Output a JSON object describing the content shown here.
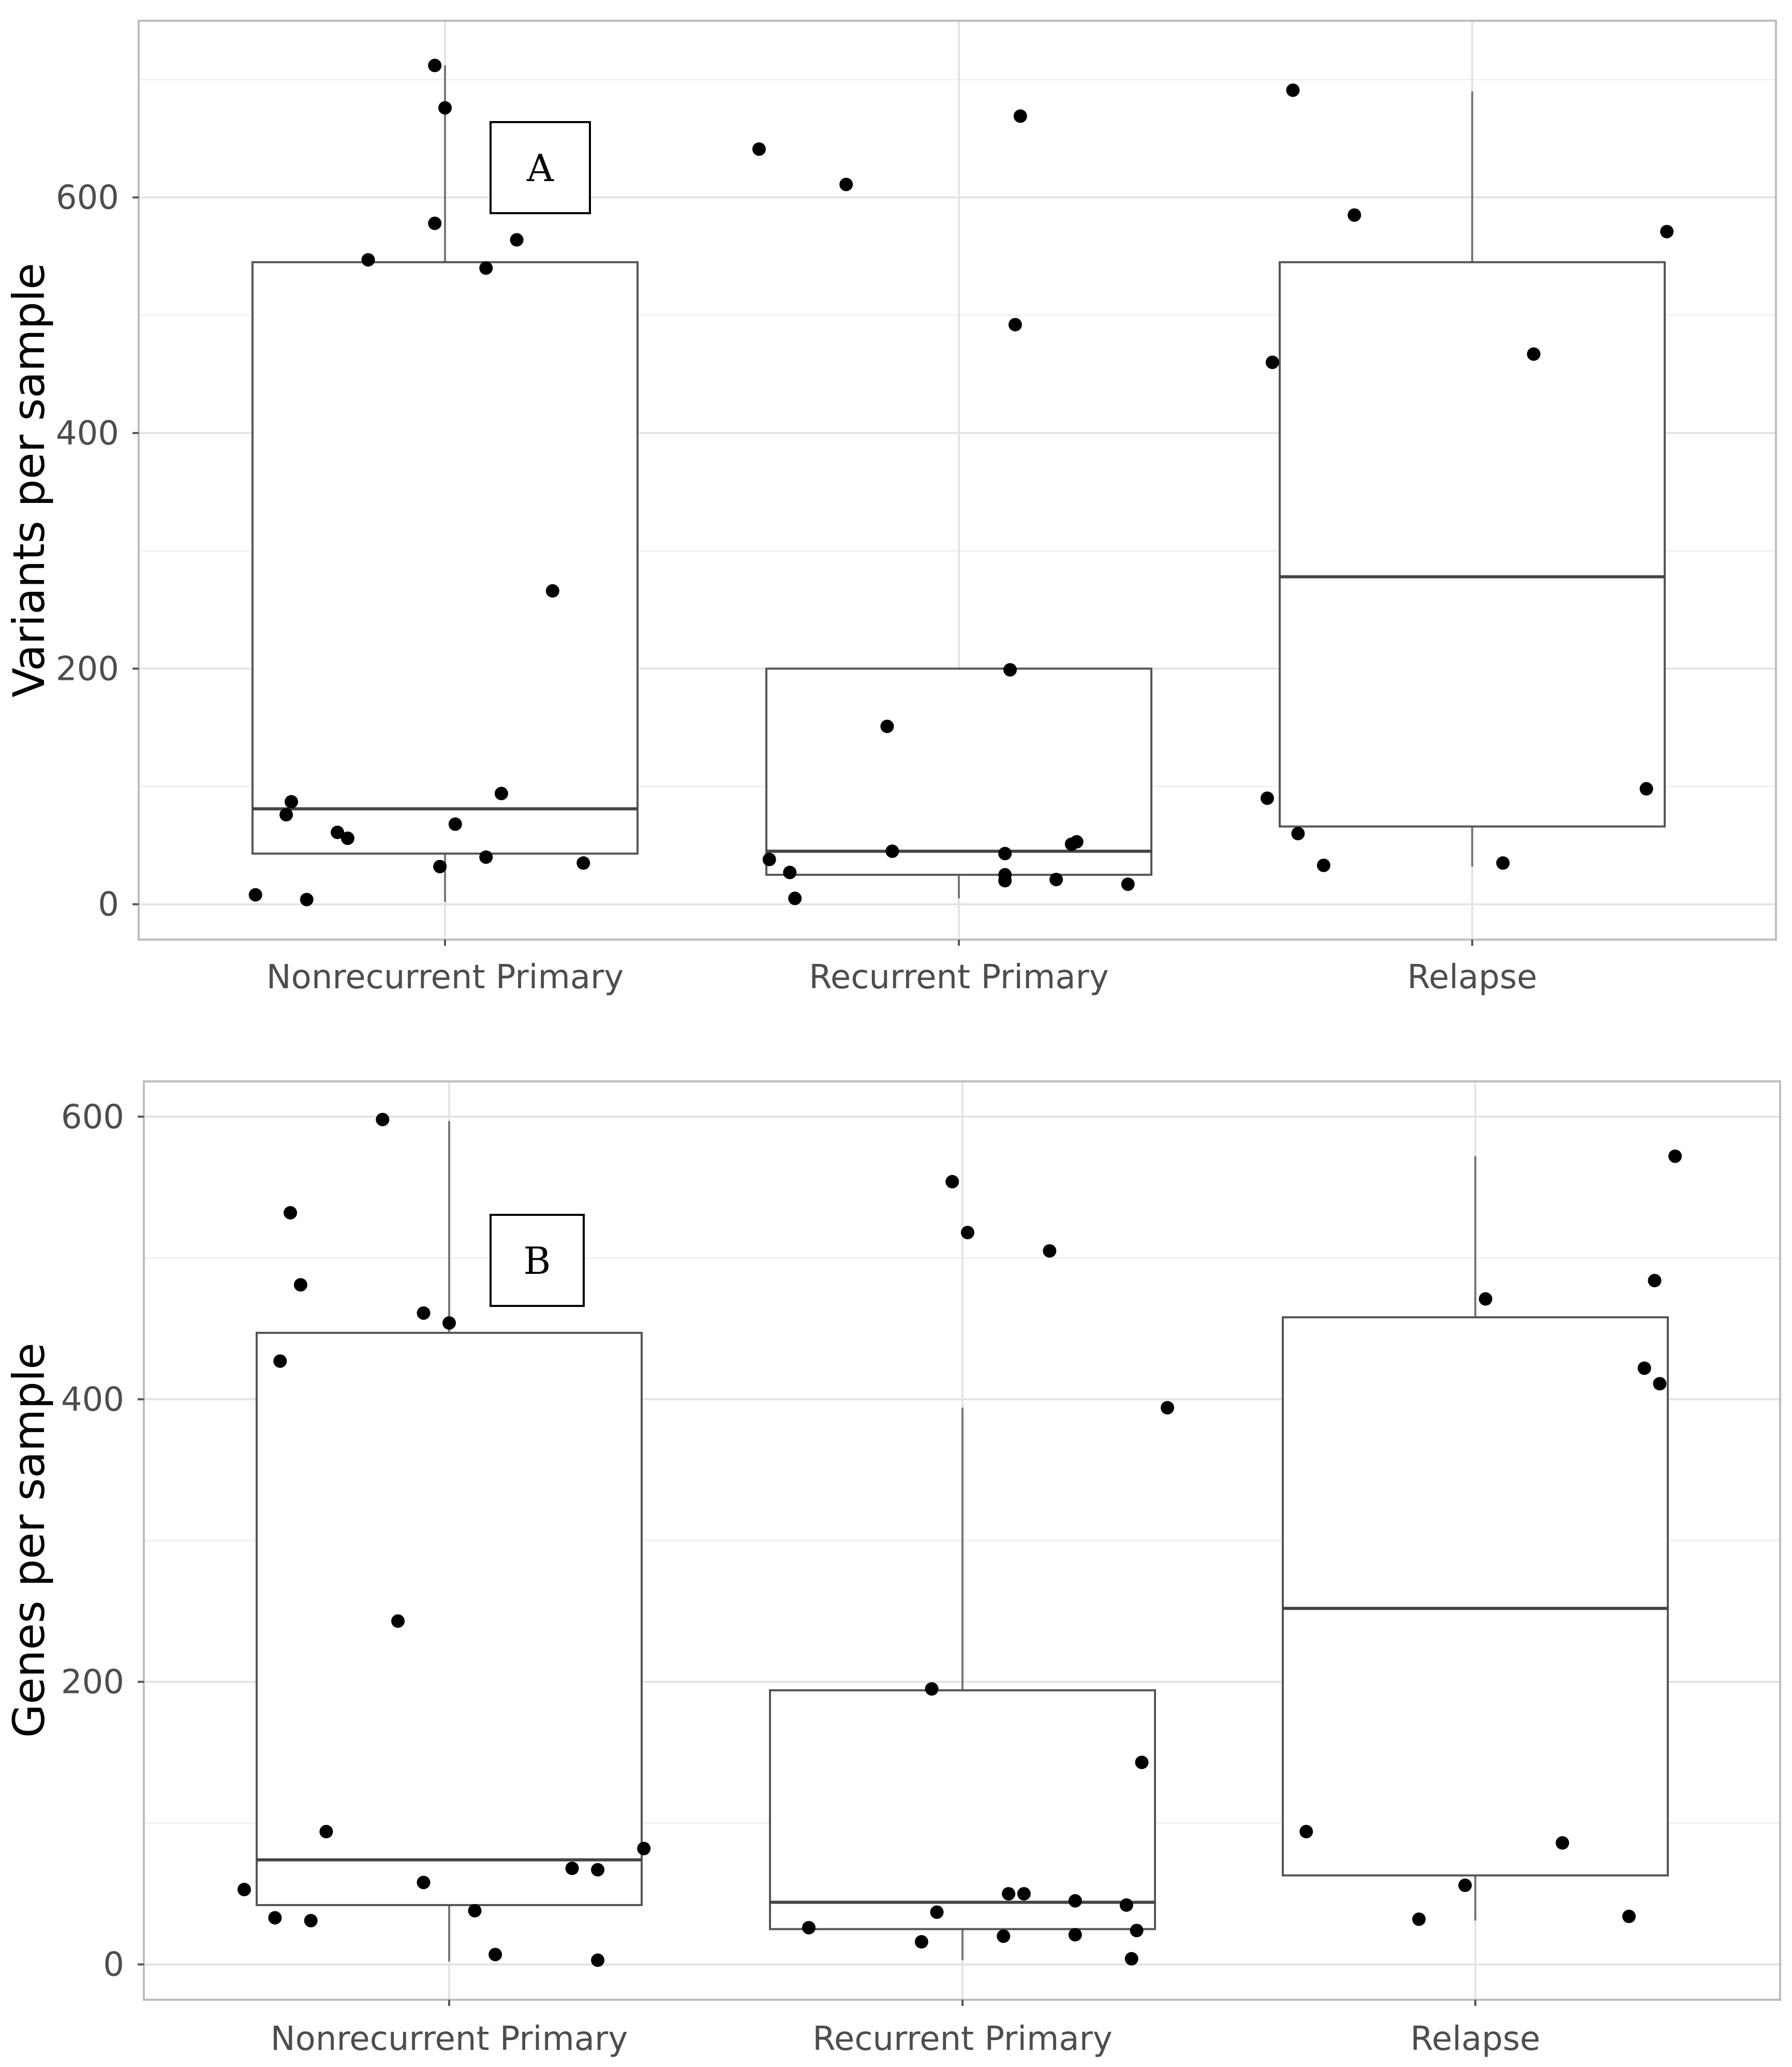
{
  "chart_data": [
    {
      "type": "boxplot",
      "panel_label": "A",
      "ylabel": "Variants per sample",
      "xlabel": "",
      "categories": [
        "Nonrecurrent Primary",
        "Recurrent Primary",
        "Relapse"
      ],
      "ylim": [
        -30,
        750
      ],
      "y_ticks": [
        0,
        200,
        400,
        600
      ],
      "boxes": [
        {
          "q1": 43,
          "median": 81,
          "q3": 545,
          "lo": 2,
          "hi": 712
        },
        {
          "q1": 25,
          "median": 45,
          "q3": 200,
          "lo": 5,
          "hi": 200
        },
        {
          "q1": 66,
          "median": 278,
          "q3": 545,
          "lo": 32,
          "hi": 690
        }
      ],
      "points": [
        [
          {
            "dx": -0.37,
            "y": 8
          },
          {
            "dx": -0.31,
            "y": 76
          },
          {
            "dx": -0.3,
            "y": 87
          },
          {
            "dx": -0.27,
            "y": 4
          },
          {
            "dx": -0.21,
            "y": 61
          },
          {
            "dx": -0.19,
            "y": 56
          },
          {
            "dx": -0.15,
            "y": 547
          },
          {
            "dx": -0.02,
            "y": 712
          },
          {
            "dx": -0.02,
            "y": 578
          },
          {
            "dx": -0.01,
            "y": 32
          },
          {
            "dx": 0.0,
            "y": 676
          },
          {
            "dx": 0.02,
            "y": 68
          },
          {
            "dx": 0.08,
            "y": 540
          },
          {
            "dx": 0.08,
            "y": 40
          },
          {
            "dx": 0.11,
            "y": 94
          },
          {
            "dx": 0.14,
            "y": 564
          },
          {
            "dx": 0.21,
            "y": 266
          },
          {
            "dx": 0.27,
            "y": 35
          }
        ],
        [
          {
            "dx": -0.39,
            "y": 641
          },
          {
            "dx": -0.37,
            "y": 38
          },
          {
            "dx": -0.33,
            "y": 27
          },
          {
            "dx": -0.32,
            "y": 5
          },
          {
            "dx": -0.22,
            "y": 611
          },
          {
            "dx": -0.14,
            "y": 151
          },
          {
            "dx": -0.13,
            "y": 45
          },
          {
            "dx": 0.09,
            "y": 20
          },
          {
            "dx": 0.09,
            "y": 25
          },
          {
            "dx": 0.09,
            "y": 43
          },
          {
            "dx": 0.1,
            "y": 199
          },
          {
            "dx": 0.11,
            "y": 492
          },
          {
            "dx": 0.12,
            "y": 669
          },
          {
            "dx": 0.19,
            "y": 21
          },
          {
            "dx": 0.22,
            "y": 51
          },
          {
            "dx": 0.23,
            "y": 53
          },
          {
            "dx": 0.33,
            "y": 17
          }
        ],
        [
          {
            "dx": -0.4,
            "y": 90
          },
          {
            "dx": -0.39,
            "y": 460
          },
          {
            "dx": -0.35,
            "y": 691
          },
          {
            "dx": -0.34,
            "y": 60
          },
          {
            "dx": -0.29,
            "y": 33
          },
          {
            "dx": -0.23,
            "y": 585
          },
          {
            "dx": 0.06,
            "y": 35
          },
          {
            "dx": 0.12,
            "y": 467
          },
          {
            "dx": 0.34,
            "y": 98
          },
          {
            "dx": 0.38,
            "y": 571
          }
        ]
      ]
    },
    {
      "type": "boxplot",
      "panel_label": "B",
      "ylabel": "Genes per sample",
      "xlabel": "",
      "categories": [
        "Nonrecurrent Primary",
        "Recurrent Primary",
        "Relapse"
      ],
      "ylim": [
        -25,
        625
      ],
      "y_ticks": [
        0,
        200,
        400,
        600
      ],
      "boxes": [
        {
          "q1": 42,
          "median": 74,
          "q3": 447,
          "lo": 2,
          "hi": 597
        },
        {
          "q1": 25,
          "median": 44,
          "q3": 194,
          "lo": 3,
          "hi": 394
        },
        {
          "q1": 63,
          "median": 252,
          "q3": 458,
          "lo": 31,
          "hi": 572
        }
      ],
      "points": [
        [
          {
            "dx": -0.4,
            "y": 53
          },
          {
            "dx": -0.34,
            "y": 33
          },
          {
            "dx": -0.33,
            "y": 427
          },
          {
            "dx": -0.31,
            "y": 532
          },
          {
            "dx": -0.29,
            "y": 481
          },
          {
            "dx": -0.27,
            "y": 31
          },
          {
            "dx": -0.24,
            "y": 94
          },
          {
            "dx": -0.13,
            "y": 598
          },
          {
            "dx": -0.1,
            "y": 243
          },
          {
            "dx": -0.05,
            "y": 58
          },
          {
            "dx": -0.05,
            "y": 461
          },
          {
            "dx": 0.0,
            "y": 454
          },
          {
            "dx": 0.05,
            "y": 38
          },
          {
            "dx": 0.09,
            "y": 7
          },
          {
            "dx": 0.24,
            "y": 68
          },
          {
            "dx": 0.29,
            "y": 67
          },
          {
            "dx": 0.29,
            "y": 3
          },
          {
            "dx": 0.38,
            "y": 82
          }
        ],
        [
          {
            "dx": -0.3,
            "y": 26
          },
          {
            "dx": -0.08,
            "y": 16
          },
          {
            "dx": -0.06,
            "y": 195
          },
          {
            "dx": -0.05,
            "y": 37
          },
          {
            "dx": -0.02,
            "y": 554
          },
          {
            "dx": 0.01,
            "y": 518
          },
          {
            "dx": 0.08,
            "y": 20
          },
          {
            "dx": 0.09,
            "y": 50
          },
          {
            "dx": 0.12,
            "y": 50
          },
          {
            "dx": 0.17,
            "y": 505
          },
          {
            "dx": 0.22,
            "y": 45
          },
          {
            "dx": 0.22,
            "y": 21
          },
          {
            "dx": 0.32,
            "y": 42
          },
          {
            "dx": 0.33,
            "y": 4
          },
          {
            "dx": 0.34,
            "y": 24
          },
          {
            "dx": 0.35,
            "y": 143
          },
          {
            "dx": 0.4,
            "y": 394
          }
        ],
        [
          {
            "dx": -0.33,
            "y": 94
          },
          {
            "dx": -0.11,
            "y": 32
          },
          {
            "dx": -0.02,
            "y": 56
          },
          {
            "dx": 0.02,
            "y": 471
          },
          {
            "dx": 0.17,
            "y": 86
          },
          {
            "dx": 0.3,
            "y": 34
          },
          {
            "dx": 0.33,
            "y": 422
          },
          {
            "dx": 0.35,
            "y": 484
          },
          {
            "dx": 0.36,
            "y": 411
          },
          {
            "dx": 0.39,
            "y": 572
          }
        ]
      ]
    }
  ]
}
